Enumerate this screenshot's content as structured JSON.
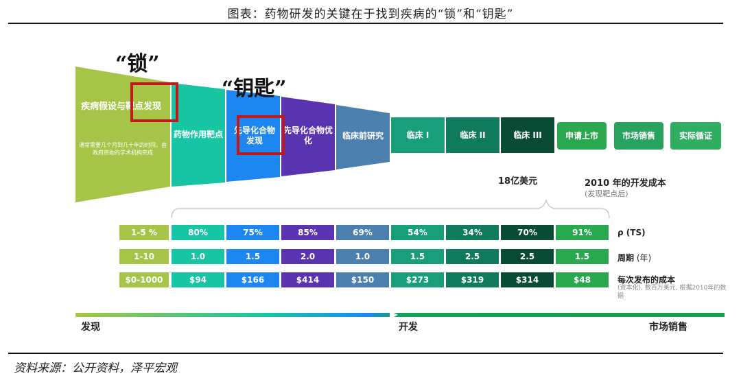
{
  "title": "图表：药物研发的关键在于找到疾病的“锁”和“钥匙”",
  "source": "资料来源：公开资料，泽平宏观",
  "lock_label": "“锁”",
  "key_label": "“钥匙”",
  "first_stage": {
    "title": "疾病假设与靶点发现",
    "description": "通常需要几个月到几十年的时间，由政府资助的学术机构完成"
  },
  "stages": [
    {
      "label": "药物作用靶点",
      "color": "#17c4a3"
    },
    {
      "label": "先导化合物发现",
      "color": "#1e86f0"
    },
    {
      "label": "先导化合物优化",
      "color": "#5a34b0"
    },
    {
      "label": "临床前研究",
      "color": "#4b7fad"
    },
    {
      "label": "临床 I",
      "color": "#189e7a"
    },
    {
      "label": "临床 II",
      "color": "#0f7a5c"
    },
    {
      "label": "临床 III",
      "color": "#0a4b36"
    },
    {
      "label": "申请上市",
      "color": "#2aa84f"
    },
    {
      "label": "市场销售",
      "color": "#28a35e"
    },
    {
      "label": "实际循证",
      "color": "#2fae62"
    }
  ],
  "first_stage_color": "#a6c447",
  "cost_amount": "18亿美元",
  "cost_title": "2010 年的开发成本",
  "cost_subtitle": "(发现靶点后)",
  "table": {
    "rows": [
      {
        "label": "ρ (TS)",
        "sublabel": "",
        "values": [
          "1-5 %",
          "80%",
          "75%",
          "85%",
          "69%",
          "54%",
          "34%",
          "70%",
          "91%"
        ]
      },
      {
        "label": "周期",
        "sublabel": " (年)",
        "values": [
          "1-10",
          "1.0",
          "1.5",
          "2.0",
          "1.0",
          "1.5",
          "2.5",
          "2.5",
          "1.5"
        ]
      },
      {
        "label": "每次发布的成本",
        "sublabel": "",
        "values": [
          "$0-1000",
          "$94",
          "$166",
          "$414",
          "$150",
          "$273",
          "$319",
          "$314",
          "$48"
        ]
      }
    ],
    "cost_note": "(资本化), 数百万美元, 根据2010年的数据",
    "column_colors": [
      "#a6c447",
      "#17c4a3",
      "#1e86f0",
      "#5a34b0",
      "#4b7fad",
      "#189e7a",
      "#0f7a5c",
      "#0a4b36",
      "#2aa84f"
    ]
  },
  "phases": [
    "发现",
    "开发",
    "市场销售"
  ]
}
